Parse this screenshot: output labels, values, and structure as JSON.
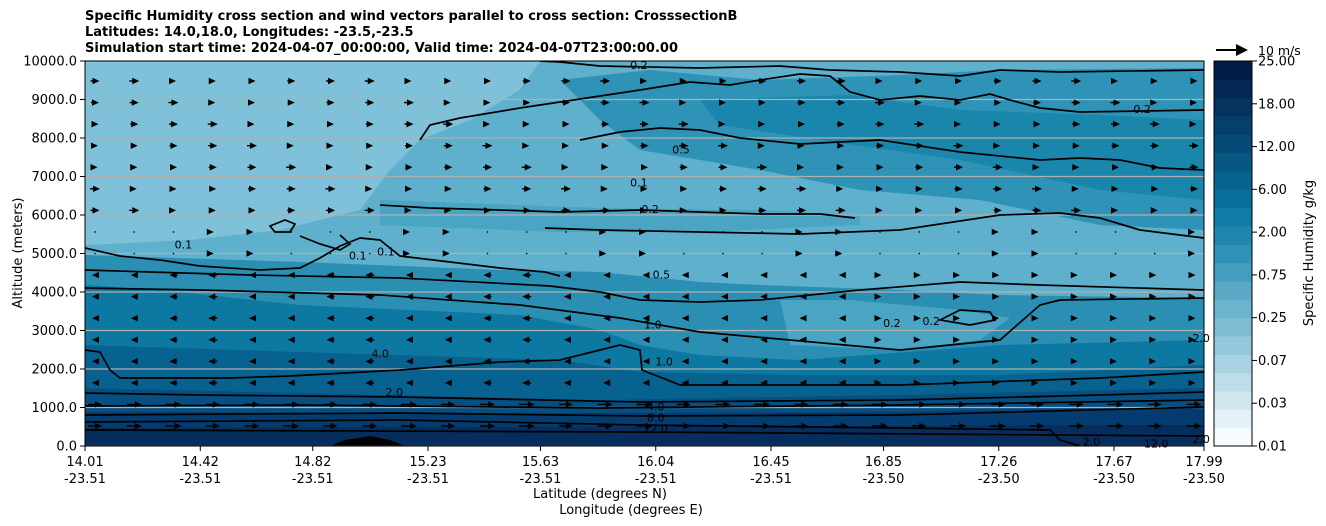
{
  "chart_data": {
    "type": "contour",
    "title_lines": [
      "Specific Humidity cross section and wind vectors parallel to cross section: CrosssectionB",
      "Latitudes: 14.0,18.0, Longitudes: -23.5,-23.5",
      "Simulation start time: 2024-04-07_00:00:00, Valid time: 2024-04-07T23:00:00.00"
    ],
    "ylabel": "Altitude (meters)",
    "xlabel_lat": "Latitude (degrees N)",
    "xlabel_lon": "Longitude (degrees E)",
    "ylim": [
      0,
      10000
    ],
    "y_ticks": [
      "0.0",
      "1000.0",
      "2000.0",
      "3000.0",
      "4000.0",
      "5000.0",
      "6000.0",
      "7000.0",
      "8000.0",
      "9000.0",
      "10000.0"
    ],
    "x_ticks_lat": [
      "14.01",
      "14.42",
      "14.82",
      "15.23",
      "15.63",
      "16.04",
      "16.45",
      "16.85",
      "17.26",
      "17.67",
      "17.99"
    ],
    "x_ticks_lon": [
      "-23.51",
      "-23.51",
      "-23.51",
      "-23.51",
      "-23.51",
      "-23.51",
      "-23.51",
      "-23.50",
      "-23.50",
      "-23.50",
      "-23.50"
    ],
    "colorbar_label": "Specific Humidity g/kg",
    "colorbar_ticks": [
      "0.01",
      "0.03",
      "0.07",
      "0.25",
      "0.75",
      "2.00",
      "6.00",
      "12.00",
      "18.00",
      "25.00"
    ],
    "reference_vector": "10 m/s",
    "contour_labels": [
      {
        "text": "0.1",
        "lat": 15.08,
        "alt": 5050
      },
      {
        "text": "0.1",
        "lat": 14.98,
        "alt": 4950
      },
      {
        "text": "0.1",
        "lat": 14.36,
        "alt": 5240
      },
      {
        "text": "0.1",
        "lat": 15.98,
        "alt": 6850
      },
      {
        "text": "0.2",
        "lat": 16.02,
        "alt": 6150
      },
      {
        "text": "0.5",
        "lat": 16.13,
        "alt": 7700
      },
      {
        "text": "0.5",
        "lat": 16.06,
        "alt": 4450
      },
      {
        "text": "1.0",
        "lat": 16.03,
        "alt": 3150
      },
      {
        "text": "1.0",
        "lat": 16.07,
        "alt": 2200
      },
      {
        "text": "0.2",
        "lat": 16.88,
        "alt": 3200
      },
      {
        "text": "0.2",
        "lat": 17.02,
        "alt": 3250
      },
      {
        "text": "0.2",
        "lat": 17.77,
        "alt": 8750
      },
      {
        "text": "0.2",
        "lat": 15.98,
        "alt": 9900
      },
      {
        "text": "4.0",
        "lat": 15.06,
        "alt": 2400
      },
      {
        "text": "2.0",
        "lat": 15.11,
        "alt": 1400
      },
      {
        "text": "4.0",
        "lat": 16.04,
        "alt": 1020
      },
      {
        "text": "8.0",
        "lat": 16.04,
        "alt": 740
      },
      {
        "text": "12.0",
        "lat": 16.04,
        "alt": 450
      },
      {
        "text": "2.0",
        "lat": 17.98,
        "alt": 2800
      },
      {
        "text": "12.0",
        "lat": 17.82,
        "alt": 60
      },
      {
        "text": "2.0",
        "lat": 17.59,
        "alt": 120
      },
      {
        "text": "2.0",
        "lat": 17.98,
        "alt": 180
      }
    ]
  }
}
